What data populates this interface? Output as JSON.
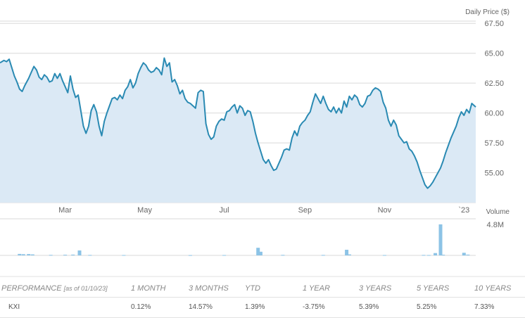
{
  "chart_data": [
    {
      "type": "line",
      "title": "",
      "ylabel": "Daily Price ($)",
      "ylim": [
        52.5,
        68.75
      ],
      "yticks": [
        "67.50",
        "65.00",
        "62.50",
        "60.00",
        "57.50",
        "55.00"
      ],
      "ytick_values": [
        67.5,
        65.0,
        62.5,
        60.0,
        57.5,
        55.0
      ],
      "xlim": [
        "2022-01-10",
        "2023-01-10"
      ],
      "xticks": [
        {
          "label": "Mar",
          "date": "2022-03-01"
        },
        {
          "label": "May",
          "date": "2022-05-01"
        },
        {
          "label": "Jul",
          "date": "2022-07-01"
        },
        {
          "label": "Sep",
          "date": "2022-09-01"
        },
        {
          "label": "Nov",
          "date": "2022-11-01"
        },
        {
          "label": "`23",
          "date": "2023-01-01"
        }
      ],
      "series": [
        {
          "color": "#2a8ab3",
          "fill": "#dbe9f5",
          "points": [
            [
              "2022-01-10",
              64.2
            ],
            [
              "2022-01-13",
              64.4
            ],
            [
              "2022-01-15",
              64.3
            ],
            [
              "2022-01-17",
              64.5
            ],
            [
              "2022-01-19",
              63.8
            ],
            [
              "2022-01-21",
              63.1
            ],
            [
              "2022-01-23",
              62.6
            ],
            [
              "2022-01-25",
              62.0
            ],
            [
              "2022-01-27",
              61.8
            ],
            [
              "2022-01-29",
              62.3
            ],
            [
              "2022-02-01",
              62.9
            ],
            [
              "2022-02-03",
              63.4
            ],
            [
              "2022-02-05",
              63.9
            ],
            [
              "2022-02-07",
              63.6
            ],
            [
              "2022-02-09",
              63.0
            ],
            [
              "2022-02-11",
              62.8
            ],
            [
              "2022-02-13",
              63.2
            ],
            [
              "2022-02-15",
              63.0
            ],
            [
              "2022-02-17",
              62.6
            ],
            [
              "2022-02-19",
              62.7
            ],
            [
              "2022-02-21",
              63.3
            ],
            [
              "2022-02-23",
              62.9
            ],
            [
              "2022-02-25",
              63.3
            ],
            [
              "2022-02-27",
              62.7
            ],
            [
              "2022-03-01",
              62.2
            ],
            [
              "2022-03-03",
              61.7
            ],
            [
              "2022-03-05",
              63.1
            ],
            [
              "2022-03-07",
              62.0
            ],
            [
              "2022-03-09",
              61.3
            ],
            [
              "2022-03-11",
              61.5
            ],
            [
              "2022-03-13",
              60.2
            ],
            [
              "2022-03-15",
              58.9
            ],
            [
              "2022-03-17",
              58.3
            ],
            [
              "2022-03-19",
              58.9
            ],
            [
              "2022-03-21",
              60.2
            ],
            [
              "2022-03-23",
              60.7
            ],
            [
              "2022-03-25",
              60.1
            ],
            [
              "2022-03-27",
              58.9
            ],
            [
              "2022-03-29",
              58.1
            ],
            [
              "2022-03-31",
              59.3
            ],
            [
              "2022-04-02",
              60.0
            ],
            [
              "2022-04-04",
              60.6
            ],
            [
              "2022-04-06",
              61.2
            ],
            [
              "2022-04-08",
              61.3
            ],
            [
              "2022-04-10",
              61.1
            ],
            [
              "2022-04-12",
              61.5
            ],
            [
              "2022-04-14",
              61.2
            ],
            [
              "2022-04-16",
              61.9
            ],
            [
              "2022-04-18",
              62.2
            ],
            [
              "2022-04-20",
              62.8
            ],
            [
              "2022-04-22",
              62.1
            ],
            [
              "2022-04-24",
              62.5
            ],
            [
              "2022-04-26",
              63.3
            ],
            [
              "2022-04-28",
              63.8
            ],
            [
              "2022-04-30",
              64.2
            ],
            [
              "2022-05-02",
              64.0
            ],
            [
              "2022-05-04",
              63.6
            ],
            [
              "2022-05-06",
              63.4
            ],
            [
              "2022-05-08",
              63.5
            ],
            [
              "2022-05-10",
              63.8
            ],
            [
              "2022-05-12",
              63.6
            ],
            [
              "2022-05-14",
              63.2
            ],
            [
              "2022-05-16",
              64.6
            ],
            [
              "2022-05-18",
              63.9
            ],
            [
              "2022-05-20",
              64.2
            ],
            [
              "2022-05-22",
              62.6
            ],
            [
              "2022-05-24",
              62.8
            ],
            [
              "2022-05-26",
              62.3
            ],
            [
              "2022-05-28",
              61.6
            ],
            [
              "2022-05-30",
              61.9
            ],
            [
              "2022-06-01",
              61.2
            ],
            [
              "2022-06-03",
              60.9
            ],
            [
              "2022-06-05",
              60.8
            ],
            [
              "2022-06-07",
              60.6
            ],
            [
              "2022-06-09",
              60.4
            ],
            [
              "2022-06-11",
              61.7
            ],
            [
              "2022-06-13",
              61.9
            ],
            [
              "2022-06-15",
              61.8
            ],
            [
              "2022-06-17",
              59.1
            ],
            [
              "2022-06-19",
              58.2
            ],
            [
              "2022-06-21",
              57.8
            ],
            [
              "2022-06-23",
              58.0
            ],
            [
              "2022-06-25",
              58.9
            ],
            [
              "2022-06-27",
              59.3
            ],
            [
              "2022-06-29",
              59.5
            ],
            [
              "2022-07-01",
              59.4
            ],
            [
              "2022-07-03",
              60.1
            ],
            [
              "2022-07-05",
              60.2
            ],
            [
              "2022-07-07",
              60.5
            ],
            [
              "2022-07-09",
              60.7
            ],
            [
              "2022-07-11",
              60.0
            ],
            [
              "2022-07-13",
              60.6
            ],
            [
              "2022-07-15",
              60.4
            ],
            [
              "2022-07-17",
              59.8
            ],
            [
              "2022-07-19",
              60.2
            ],
            [
              "2022-07-21",
              60.1
            ],
            [
              "2022-07-23",
              59.3
            ],
            [
              "2022-07-25",
              58.3
            ],
            [
              "2022-07-27",
              57.5
            ],
            [
              "2022-07-29",
              56.8
            ],
            [
              "2022-07-31",
              56.1
            ],
            [
              "2022-08-02",
              55.8
            ],
            [
              "2022-08-04",
              56.1
            ],
            [
              "2022-08-06",
              55.6
            ],
            [
              "2022-08-08",
              55.2
            ],
            [
              "2022-08-10",
              55.3
            ],
            [
              "2022-08-12",
              55.8
            ],
            [
              "2022-08-14",
              56.3
            ],
            [
              "2022-08-16",
              56.9
            ],
            [
              "2022-08-18",
              57.0
            ],
            [
              "2022-08-20",
              56.9
            ],
            [
              "2022-08-22",
              57.9
            ],
            [
              "2022-08-24",
              58.5
            ],
            [
              "2022-08-26",
              58.1
            ],
            [
              "2022-08-28",
              58.9
            ],
            [
              "2022-08-30",
              59.2
            ],
            [
              "2022-09-01",
              59.4
            ],
            [
              "2022-09-03",
              59.8
            ],
            [
              "2022-09-05",
              60.1
            ],
            [
              "2022-09-07",
              60.9
            ],
            [
              "2022-09-09",
              61.6
            ],
            [
              "2022-09-11",
              61.2
            ],
            [
              "2022-09-13",
              60.8
            ],
            [
              "2022-09-15",
              61.4
            ],
            [
              "2022-09-17",
              60.8
            ],
            [
              "2022-09-19",
              60.3
            ],
            [
              "2022-09-21",
              60.1
            ],
            [
              "2022-09-23",
              60.5
            ],
            [
              "2022-09-25",
              60.0
            ],
            [
              "2022-09-27",
              60.4
            ],
            [
              "2022-09-29",
              60.0
            ],
            [
              "2022-10-01",
              61.0
            ],
            [
              "2022-10-03",
              60.5
            ],
            [
              "2022-10-05",
              61.4
            ],
            [
              "2022-10-07",
              61.1
            ],
            [
              "2022-10-09",
              61.5
            ],
            [
              "2022-10-11",
              61.3
            ],
            [
              "2022-10-13",
              60.7
            ],
            [
              "2022-10-15",
              60.5
            ],
            [
              "2022-10-17",
              60.8
            ],
            [
              "2022-10-19",
              61.4
            ],
            [
              "2022-10-21",
              61.5
            ],
            [
              "2022-10-23",
              61.9
            ],
            [
              "2022-10-25",
              62.1
            ],
            [
              "2022-10-27",
              62.0
            ],
            [
              "2022-10-29",
              61.8
            ],
            [
              "2022-10-31",
              60.9
            ],
            [
              "2022-11-02",
              60.4
            ],
            [
              "2022-11-04",
              59.4
            ],
            [
              "2022-11-06",
              58.9
            ],
            [
              "2022-11-08",
              59.4
            ],
            [
              "2022-11-10",
              59.0
            ],
            [
              "2022-11-12",
              58.1
            ],
            [
              "2022-11-14",
              57.8
            ],
            [
              "2022-11-16",
              57.5
            ],
            [
              "2022-11-18",
              57.6
            ],
            [
              "2022-11-20",
              57.0
            ],
            [
              "2022-11-22",
              56.8
            ],
            [
              "2022-11-24",
              56.4
            ],
            [
              "2022-11-26",
              55.9
            ],
            [
              "2022-11-28",
              55.2
            ],
            [
              "2022-11-30",
              54.6
            ],
            [
              "2022-12-02",
              54.0
            ],
            [
              "2022-12-04",
              53.7
            ],
            [
              "2022-12-06",
              53.9
            ],
            [
              "2022-12-08",
              54.2
            ],
            [
              "2022-12-10",
              54.6
            ],
            [
              "2022-12-12",
              55.0
            ],
            [
              "2022-12-14",
              55.4
            ],
            [
              "2022-12-16",
              56.0
            ],
            [
              "2022-12-18",
              56.7
            ],
            [
              "2022-12-20",
              57.3
            ],
            [
              "2022-12-22",
              57.9
            ],
            [
              "2022-12-24",
              58.4
            ],
            [
              "2022-12-26",
              58.9
            ],
            [
              "2022-12-28",
              59.6
            ],
            [
              "2022-12-30",
              60.1
            ],
            [
              "2023-01-01",
              59.8
            ],
            [
              "2023-01-03",
              60.3
            ],
            [
              "2023-01-05",
              60.0
            ],
            [
              "2023-01-07",
              60.8
            ],
            [
              "2023-01-10",
              60.5
            ]
          ]
        }
      ]
    },
    {
      "type": "bar",
      "ylabel": "Volume",
      "ymax_label": "4.8M",
      "ylim": [
        0,
        4.8
      ],
      "unit": "M",
      "bars": [
        [
          "2022-01-25",
          0.22
        ],
        [
          "2022-01-28",
          0.18
        ],
        [
          "2022-02-01",
          0.2
        ],
        [
          "2022-02-04",
          0.15
        ],
        [
          "2022-02-18",
          0.08
        ],
        [
          "2022-03-01",
          0.1
        ],
        [
          "2022-03-07",
          0.12
        ],
        [
          "2022-03-12",
          0.75
        ],
        [
          "2022-03-20",
          0.06
        ],
        [
          "2022-04-15",
          0.05
        ],
        [
          "2022-06-05",
          0.04
        ],
        [
          "2022-07-01",
          0.05
        ],
        [
          "2022-07-27",
          1.15
        ],
        [
          "2022-07-29",
          0.55
        ],
        [
          "2022-08-15",
          0.08
        ],
        [
          "2022-09-15",
          0.06
        ],
        [
          "2022-10-03",
          0.85
        ],
        [
          "2022-10-05",
          0.15
        ],
        [
          "2022-11-01",
          0.05
        ],
        [
          "2022-12-01",
          0.06
        ],
        [
          "2022-12-05",
          0.05
        ],
        [
          "2022-12-10",
          0.35
        ],
        [
          "2022-12-14",
          4.7
        ],
        [
          "2022-12-16",
          0.1
        ],
        [
          "2023-01-01",
          0.4
        ],
        [
          "2023-01-04",
          0.12
        ]
      ]
    }
  ],
  "performance": {
    "header": {
      "label": "PERFORMANCE",
      "as_of": "[as of 01/10/23]",
      "periods": [
        "1 MONTH",
        "3 MONTHS",
        "YTD",
        "1 YEAR",
        "3 YEARS",
        "5 YEARS",
        "10 YEARS"
      ]
    },
    "row": {
      "ticker": "KXI",
      "values": [
        "0.12%",
        "14.57%",
        "1.39%",
        "-3.75%",
        "5.39%",
        "5.25%",
        "7.33%"
      ]
    }
  }
}
